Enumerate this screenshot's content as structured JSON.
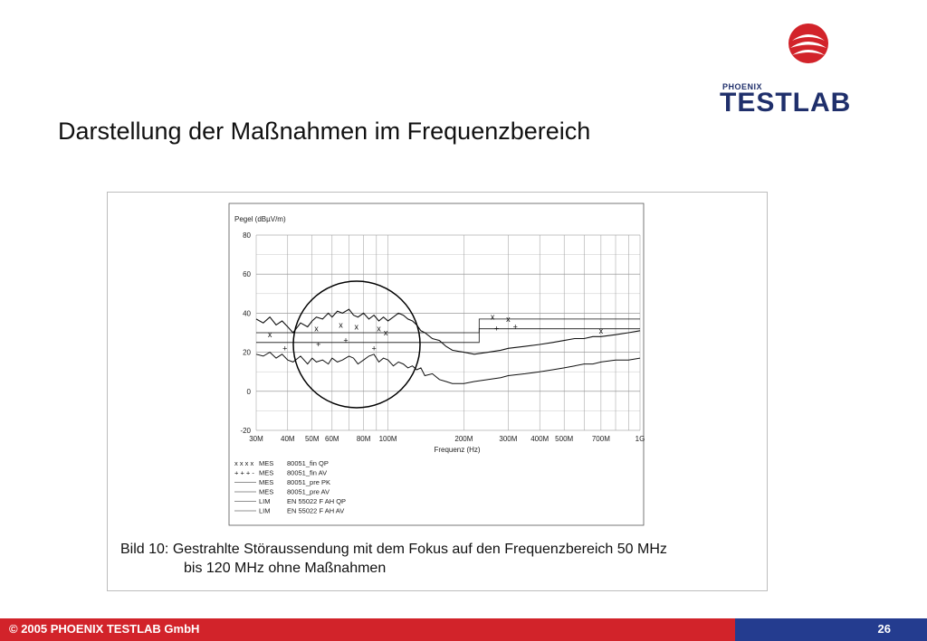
{
  "logo": {
    "small": "PHOENIX",
    "big": "TESTLAB"
  },
  "slide_title": "Darstellung der Maßnahmen im Frequenzbereich",
  "caption": {
    "line1": "Bild 10: Gestrahlte Störaussendung mit dem Fokus auf den Frequenzbereich 50 MHz",
    "line2": "bis 120 MHz ohne Maßnahmen"
  },
  "footer": {
    "copyright": "© 2005 PHOENIX TESTLAB GmbH",
    "page": "26"
  },
  "colors": {
    "footer_red": "#d2232a",
    "footer_blue": "#243c8f",
    "logo_navy": "#1f2f6b",
    "logo_red": "#d2232a"
  },
  "chart_data": {
    "type": "line",
    "ylabel": "Pegel (dBµV/m)",
    "xlabel": "Frequenz (Hz)",
    "x_scale": "log",
    "xlim": [
      30,
      1000
    ],
    "ylim": [
      -20,
      80
    ],
    "yticks": [
      80,
      60,
      40,
      20,
      0,
      -20
    ],
    "xticks": [
      {
        "value": 30,
        "label": "30M"
      },
      {
        "value": 40,
        "label": "40M"
      },
      {
        "value": 50,
        "label": "50M"
      },
      {
        "value": 60,
        "label": "60M"
      },
      {
        "value": 80,
        "label": "80M"
      },
      {
        "value": 100,
        "label": "100M"
      },
      {
        "value": 200,
        "label": "200M"
      },
      {
        "value": 300,
        "label": "300M"
      },
      {
        "value": 400,
        "label": "400M"
      },
      {
        "value": 500,
        "label": "500M"
      },
      {
        "value": 700,
        "label": "700M"
      },
      {
        "value": 1000,
        "label": "1G"
      }
    ],
    "grid": true,
    "series": [
      {
        "name": "MES 80051_pre PK",
        "x": [
          30,
          32,
          34,
          36,
          38,
          40,
          42,
          45,
          48,
          50,
          52,
          55,
          58,
          60,
          63,
          66,
          70,
          73,
          76,
          80,
          84,
          88,
          92,
          96,
          100,
          105,
          110,
          115,
          120,
          125,
          130,
          135,
          140,
          150,
          160,
          170,
          180,
          200,
          220,
          250,
          280,
          300,
          350,
          400,
          450,
          500,
          550,
          600,
          650,
          700,
          800,
          900,
          1000
        ],
        "values": [
          37,
          35,
          38,
          34,
          36,
          33,
          30,
          35,
          33,
          36,
          38,
          37,
          40,
          38,
          41,
          40,
          42,
          39,
          38,
          40,
          37,
          39,
          36,
          38,
          36,
          38,
          40,
          39,
          37,
          36,
          34,
          31,
          30,
          27,
          26,
          23,
          21,
          20,
          19,
          20,
          21,
          22,
          23,
          24,
          25,
          26,
          27,
          27,
          28,
          28,
          29,
          30,
          31
        ]
      },
      {
        "name": "MES 80051_pre AV",
        "x": [
          30,
          32,
          34,
          36,
          38,
          40,
          42,
          45,
          48,
          50,
          52,
          55,
          58,
          60,
          63,
          66,
          70,
          73,
          76,
          80,
          84,
          88,
          92,
          96,
          100,
          105,
          110,
          115,
          120,
          125,
          130,
          135,
          140,
          150,
          160,
          170,
          180,
          200,
          220,
          250,
          280,
          300,
          350,
          400,
          450,
          500,
          550,
          600,
          650,
          700,
          800,
          900,
          1000
        ],
        "values": [
          19,
          18,
          20,
          17,
          19,
          16,
          15,
          18,
          14,
          17,
          15,
          16,
          14,
          17,
          15,
          16,
          18,
          17,
          14,
          16,
          18,
          19,
          15,
          17,
          16,
          13,
          15,
          14,
          12,
          13,
          11,
          12,
          8,
          9,
          6,
          5,
          4,
          4,
          5,
          6,
          7,
          8,
          9,
          10,
          11,
          12,
          13,
          14,
          14,
          15,
          16,
          16,
          17
        ]
      },
      {
        "name": "LIM EN 55022 F AH QP",
        "x": [
          30,
          230,
          230,
          1000
        ],
        "values": [
          30,
          30,
          37,
          37
        ]
      },
      {
        "name": "LIM EN 55022 F AH AV",
        "x": [
          30,
          230,
          230,
          1000
        ],
        "values": [
          25,
          25,
          32,
          32
        ]
      }
    ],
    "markers": [
      {
        "name": "MES 80051_fin QP",
        "symbol": "x",
        "x": [
          34,
          52,
          65,
          75,
          92,
          98,
          260,
          300,
          700
        ],
        "values": [
          29,
          32,
          34,
          33,
          32,
          30,
          38,
          37,
          31
        ]
      },
      {
        "name": "MES 80051_fin AV",
        "symbol": "+",
        "x": [
          39,
          53,
          68,
          88,
          270,
          320
        ],
        "values": [
          22,
          24,
          26,
          22,
          32,
          33
        ]
      }
    ],
    "legend": [
      {
        "marker": "x x x x",
        "type": "MES",
        "name": "80051_fin QP"
      },
      {
        "marker": "+ + + -",
        "type": "MES",
        "name": "80051_fin AV"
      },
      {
        "marker": "",
        "type": "MES",
        "name": "80051_pre PK"
      },
      {
        "marker": "",
        "type": "MES",
        "name": "80051_pre AV"
      },
      {
        "marker": "",
        "type": "LIM",
        "name": "EN 55022 F AH QP"
      },
      {
        "marker": "",
        "type": "LIM",
        "name": "EN 55022 F AH AV"
      }
    ],
    "annotation": "circle around 50–120 MHz region"
  }
}
